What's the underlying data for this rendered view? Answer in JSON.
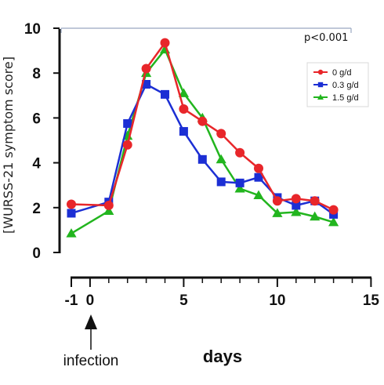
{
  "chart_data": {
    "type": "line",
    "xlabel": "days",
    "ylabel": "[WURSS-21 symptom score]",
    "xlim": [
      -1,
      15
    ],
    "ylim": [
      0,
      10
    ],
    "x_ticks": [
      "-1",
      "0",
      "5",
      "10",
      "15"
    ],
    "x_tick_values": [
      -1,
      0,
      5,
      10,
      15
    ],
    "y_ticks": [
      "0",
      "2",
      "4",
      "6",
      "8",
      "10"
    ],
    "y_tick_values": [
      0,
      2,
      4,
      6,
      8,
      10
    ],
    "annotation_text": "infection",
    "annotation_x": 0,
    "pvalue": "p<0.001",
    "grid": false,
    "legend_position": "top-right",
    "series": [
      {
        "name": "0 g/d",
        "color": "#e8262a",
        "marker": "circle",
        "x": [
          -1,
          1,
          2,
          3,
          4,
          5,
          6,
          7,
          8,
          9,
          10,
          11,
          12,
          13
        ],
        "y": [
          2.15,
          2.1,
          4.8,
          8.2,
          9.35,
          6.4,
          5.85,
          5.3,
          4.45,
          3.75,
          2.3,
          2.4,
          2.3,
          1.9
        ]
      },
      {
        "name": "0.3 g/d",
        "color": "#1c2fd4",
        "marker": "square",
        "x": [
          -1,
          1,
          2,
          3,
          4,
          5,
          6,
          7,
          8,
          9,
          10,
          11,
          12,
          13
        ],
        "y": [
          1.75,
          2.25,
          5.75,
          7.5,
          7.05,
          5.4,
          4.15,
          3.15,
          3.1,
          3.35,
          2.45,
          2.1,
          2.3,
          1.7
        ]
      },
      {
        "name": "1.5 g/d",
        "color": "#22b51e",
        "marker": "triangle",
        "x": [
          -1,
          1,
          2,
          3,
          4,
          5,
          6,
          7,
          8,
          9,
          10,
          11,
          12,
          13
        ],
        "y": [
          0.85,
          1.85,
          5.2,
          8.0,
          9.05,
          7.1,
          6.0,
          4.15,
          2.85,
          2.55,
          1.75,
          1.8,
          1.6,
          1.35
        ]
      }
    ]
  }
}
